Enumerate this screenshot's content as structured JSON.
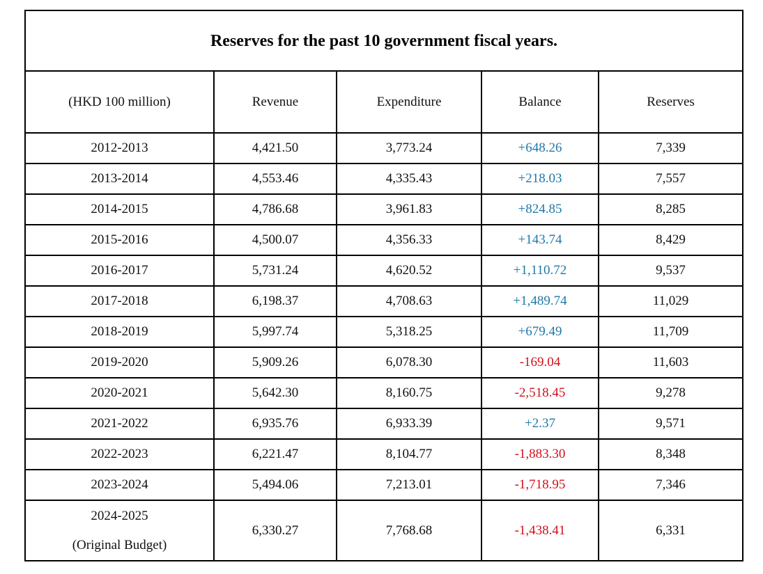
{
  "title": "Reserves for the past 10 government fiscal years.",
  "headers": [
    "(HKD 100 million)",
    "Revenue",
    "Expenditure",
    "Balance",
    "Reserves"
  ],
  "colors": {
    "positive": "#1f78a8",
    "negative": "#d0101c"
  },
  "rows": [
    {
      "year": "2012-2013",
      "note": "",
      "revenue": "4,421.50",
      "expenditure": "3,773.24",
      "balance": "+648.26",
      "reserves": "7,339"
    },
    {
      "year": "2013-2014",
      "note": "",
      "revenue": "4,553.46",
      "expenditure": "4,335.43",
      "balance": "+218.03",
      "reserves": "7,557"
    },
    {
      "year": "2014-2015",
      "note": "",
      "revenue": "4,786.68",
      "expenditure": "3,961.83",
      "balance": "+824.85",
      "reserves": "8,285"
    },
    {
      "year": "2015-2016",
      "note": "",
      "revenue": "4,500.07",
      "expenditure": "4,356.33",
      "balance": "+143.74",
      "reserves": "8,429"
    },
    {
      "year": "2016-2017",
      "note": "",
      "revenue": "5,731.24",
      "expenditure": "4,620.52",
      "balance": "+1,110.72",
      "reserves": "9,537"
    },
    {
      "year": "2017-2018",
      "note": "",
      "revenue": "6,198.37",
      "expenditure": "4,708.63",
      "balance": "+1,489.74",
      "reserves": "11,029"
    },
    {
      "year": "2018-2019",
      "note": "",
      "revenue": "5,997.74",
      "expenditure": "5,318.25",
      "balance": "+679.49",
      "reserves": "11,709"
    },
    {
      "year": "2019-2020",
      "note": "",
      "revenue": "5,909.26",
      "expenditure": "6,078.30",
      "balance": "-169.04",
      "reserves": "11,603"
    },
    {
      "year": "2020-2021",
      "note": "",
      "revenue": "5,642.30",
      "expenditure": "8,160.75",
      "balance": "-2,518.45",
      "reserves": "9,278"
    },
    {
      "year": "2021-2022",
      "note": "",
      "revenue": "6,935.76",
      "expenditure": "6,933.39",
      "balance": "+2.37",
      "reserves": "9,571"
    },
    {
      "year": "2022-2023",
      "note": "",
      "revenue": "6,221.47",
      "expenditure": "8,104.77",
      "balance": "-1,883.30",
      "reserves": "8,348"
    },
    {
      "year": "2023-2024",
      "note": "",
      "revenue": "5,494.06",
      "expenditure": "7,213.01",
      "balance": "-1,718.95",
      "reserves": "7,346"
    },
    {
      "year": "2024-2025",
      "note": "(Original Budget)",
      "revenue": "6,330.27",
      "expenditure": "7,768.68",
      "balance": "-1,438.41",
      "reserves": "6,331"
    }
  ]
}
